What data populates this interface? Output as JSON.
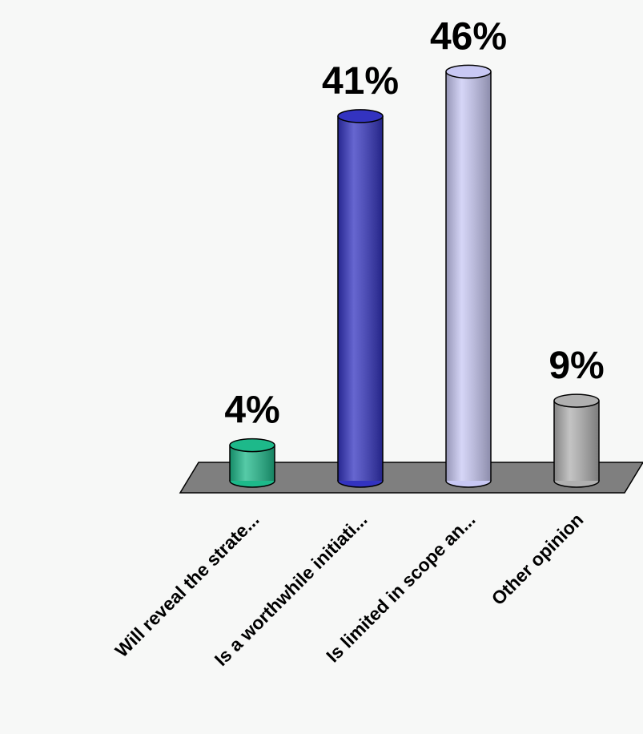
{
  "chart_data": {
    "type": "bar",
    "categories": [
      "Will reveal the strate...",
      "Is a worthwhile initiati...",
      "Is limited in scope an...",
      "Other opinion"
    ],
    "values": [
      4,
      41,
      46,
      9
    ],
    "value_labels": [
      "4%",
      "41%",
      "46%",
      "9%"
    ],
    "colors": [
      "#1db98a",
      "#3333c0",
      "#c8c8f4",
      "#b0b0b0"
    ]
  }
}
